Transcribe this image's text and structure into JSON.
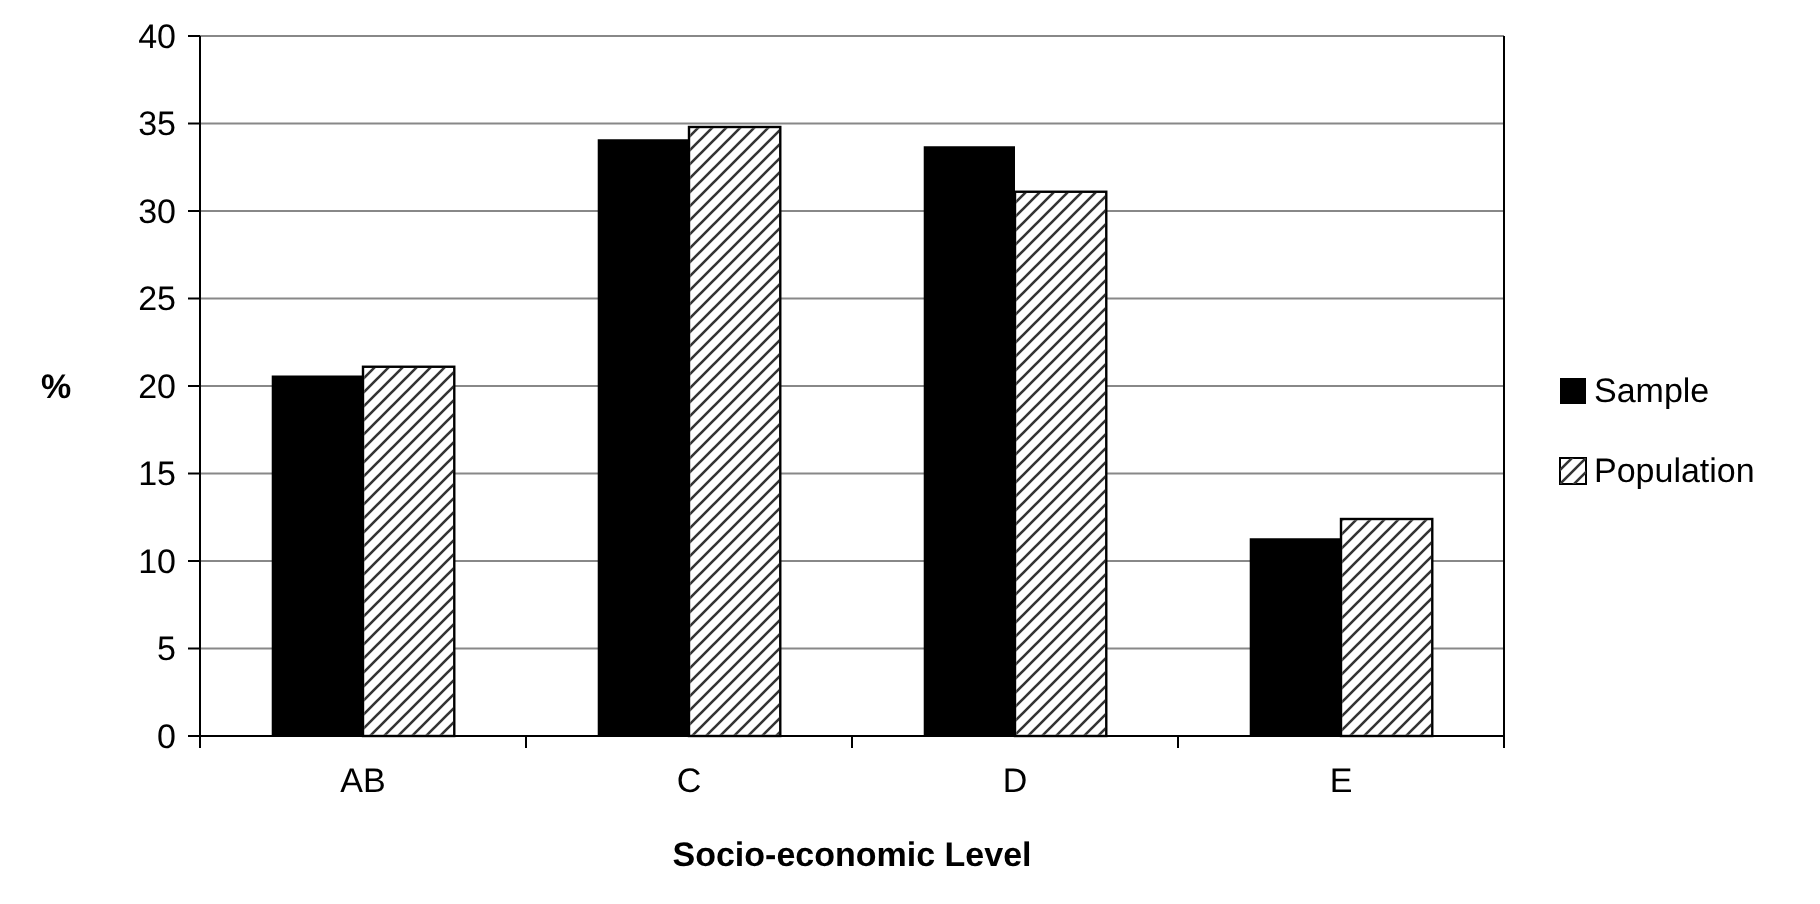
{
  "chart_data": {
    "type": "bar",
    "xlabel": "Socio-economic Level",
    "ylabel": "%",
    "categories": [
      "AB",
      "C",
      "D",
      "E"
    ],
    "series": [
      {
        "name": "Sample",
        "color": "#000000",
        "values": [
          20.6,
          34.1,
          33.7,
          11.3
        ]
      },
      {
        "name": "Population",
        "color": "#ffffff",
        "values": [
          21.1,
          34.8,
          31.1,
          12.4
        ]
      }
    ],
    "ylim": [
      0,
      40
    ],
    "yticks": [
      0,
      5,
      10,
      15,
      20,
      25,
      30,
      35,
      40
    ],
    "grid": "y",
    "legend": "right"
  }
}
